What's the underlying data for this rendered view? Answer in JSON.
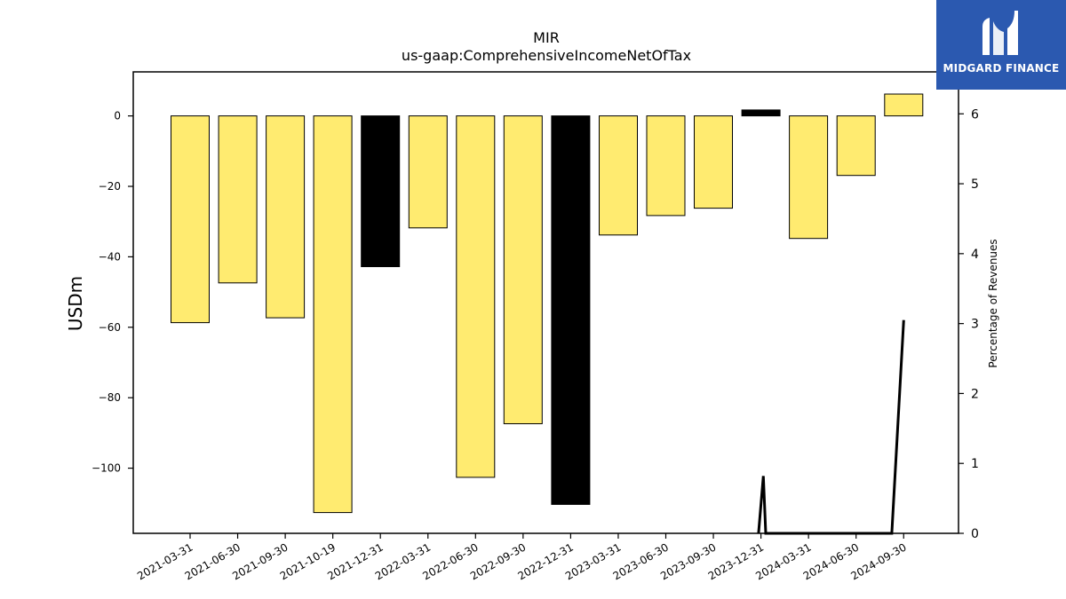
{
  "chart_data": {
    "type": "bar",
    "title": "MIR",
    "subtitle": "us-gaap:ComprehensiveIncomeNetOfTax",
    "ylabel": "USDm",
    "y2label": "Percentage of Revenues",
    "categories": [
      "2021-03-31",
      "2021-06-30",
      "2021-09-30",
      "2021-10-19",
      "2021-12-31",
      "2022-03-31",
      "2022-06-30",
      "2022-09-30",
      "2022-12-31",
      "2023-03-31",
      "2023-06-30",
      "2023-09-30",
      "2023-12-31",
      "2024-03-31",
      "2024-06-30",
      "2024-09-30"
    ],
    "values": [
      -58.7,
      -47.4,
      -57.3,
      -112.6,
      -42.8,
      -31.8,
      -102.6,
      -87.4,
      -110.3,
      -33.8,
      -28.3,
      -26.2,
      1.7,
      -34.8,
      -16.9,
      6.2
    ],
    "bar_colors": [
      "#ffeb70",
      "#ffeb70",
      "#ffeb70",
      "#ffeb70",
      "#000000",
      "#ffeb70",
      "#ffeb70",
      "#ffeb70",
      "#000000",
      "#ffeb70",
      "#ffeb70",
      "#ffeb70",
      "#000000",
      "#ffeb70",
      "#ffeb70",
      "#ffeb70"
    ],
    "ylim": [
      -118.5,
      12.5
    ],
    "yticks": [
      0,
      -20,
      -40,
      -60,
      -80,
      -100
    ],
    "ytick_labels": [
      "0",
      "−20",
      "−40",
      "−60",
      "−80",
      "−100"
    ],
    "y2lim": [
      0,
      6.6
    ],
    "y2ticks": [
      0,
      1,
      2,
      3,
      4,
      5,
      6
    ],
    "line": {
      "color": "#000000",
      "x": [
        11.95,
        12.05,
        12.1,
        14.75,
        15.0
      ],
      "y": [
        0,
        0.82,
        0,
        0,
        3.05
      ]
    },
    "grid": false
  },
  "logo": {
    "text": "MIDGARD FINANCE",
    "bg": "#2b59b0"
  }
}
